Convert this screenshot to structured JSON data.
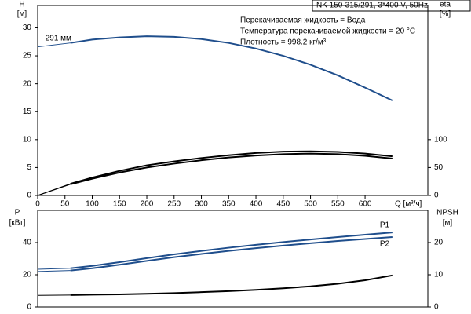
{
  "header": {
    "title": "NK 150-315/291, 3*400 V, 50Hz",
    "conditions": [
      "Перекачиваемая жидкость = Вода",
      "Температура перекачиваемой жидкости = 20 °C",
      "Плотность = 998.2 кг/м³"
    ]
  },
  "chart_data": [
    {
      "type": "line",
      "y_label": "H",
      "y_unit": "[м]",
      "y2_label": "eta",
      "y2_unit": "[%]",
      "x_label": "Q [м³/ч]",
      "x": [
        0,
        60,
        100,
        150,
        200,
        250,
        300,
        350,
        400,
        450,
        500,
        550,
        600,
        650
      ],
      "series": [
        {
          "name": "291 мм",
          "color": "#1f4e8c",
          "values": [
            26.6,
            27.3,
            27.9,
            28.3,
            28.5,
            28.4,
            28.0,
            27.3,
            26.3,
            25.0,
            23.4,
            21.5,
            19.3,
            17.0
          ]
        },
        {
          "color": "#000000",
          "axis": "y2",
          "values": [
            0,
            21,
            32,
            44,
            54,
            61,
            67,
            72,
            76,
            78.5,
            79,
            78,
            75,
            70
          ]
        },
        {
          "color": "#000000",
          "axis": "y2",
          "values": [
            0,
            20,
            30,
            41,
            50,
            57,
            63,
            68,
            71.5,
            74,
            75,
            74,
            71,
            66
          ]
        }
      ],
      "xlim": [
        0,
        715
      ],
      "xticks": [
        0,
        50,
        100,
        150,
        200,
        250,
        300,
        350,
        400,
        450,
        500,
        550,
        600
      ],
      "ylim": [
        0,
        34
      ],
      "yticks": [
        0,
        5,
        10,
        15,
        20,
        25,
        30
      ],
      "y2lim": [
        0,
        340
      ],
      "y2ticks": [
        0,
        50,
        100
      ]
    },
    {
      "type": "line",
      "y_label": "P",
      "y_unit": "[кВт]",
      "y2_label": "NPSH",
      "y2_unit": "[м]",
      "x": [
        0,
        60,
        100,
        150,
        200,
        250,
        300,
        350,
        400,
        450,
        500,
        550,
        600,
        650
      ],
      "series": [
        {
          "name": "P1",
          "color": "#1f4e8c",
          "values": [
            23.4,
            24,
            25.5,
            27.8,
            30.3,
            32.7,
            34.8,
            36.8,
            38.6,
            40.3,
            41.9,
            43.4,
            44.9,
            46.3
          ]
        },
        {
          "name": "P2",
          "color": "#1f4e8c",
          "values": [
            22,
            22.6,
            24,
            26.2,
            28.6,
            30.9,
            32.9,
            34.8,
            36.5,
            38.1,
            39.6,
            41,
            42.2,
            43.4
          ]
        },
        {
          "color": "#000000",
          "axis": "y2",
          "values": [
            3.6,
            3.7,
            3.8,
            3.9,
            4.1,
            4.3,
            4.6,
            4.9,
            5.3,
            5.8,
            6.4,
            7.2,
            8.3,
            9.8
          ]
        }
      ],
      "xlim": [
        0,
        715
      ],
      "ylim": [
        0,
        60
      ],
      "yticks": [
        0,
        20,
        40
      ],
      "y2lim": [
        0,
        30
      ],
      "y2ticks": [
        0,
        10,
        20
      ]
    }
  ]
}
